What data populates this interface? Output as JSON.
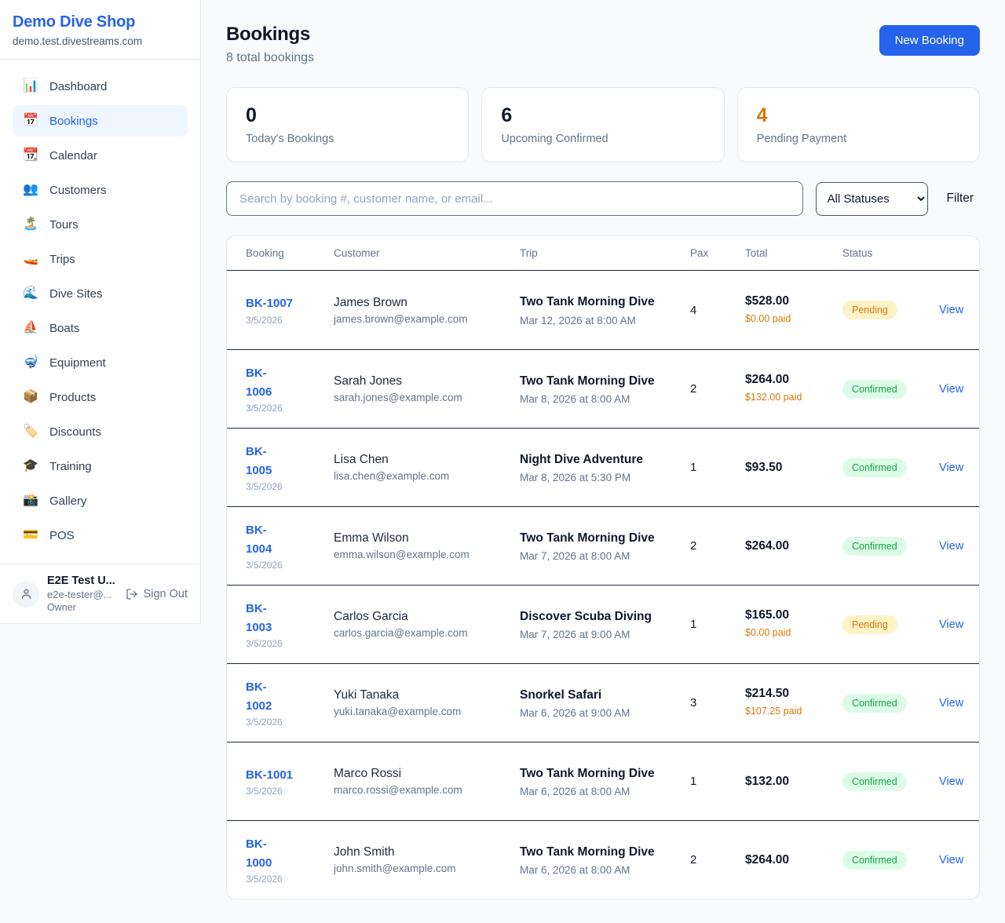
{
  "sidebar": {
    "brand": {
      "name": "Demo Dive Shop",
      "domain": "demo.test.divestreams.com"
    },
    "items": [
      {
        "label": "Dashboard",
        "icon": "bar-chart-icon",
        "glyph": "📊",
        "active": false
      },
      {
        "label": "Bookings",
        "icon": "calendar-icon",
        "glyph": "📅",
        "active": true
      },
      {
        "label": "Calendar",
        "icon": "tear-off-calendar-icon",
        "glyph": "📆",
        "active": false
      },
      {
        "label": "Customers",
        "icon": "people-icon",
        "glyph": "👥",
        "active": false
      },
      {
        "label": "Tours",
        "icon": "island-icon",
        "glyph": "🏝️",
        "active": false
      },
      {
        "label": "Trips",
        "icon": "speedboat-icon",
        "glyph": "🚤",
        "active": false
      },
      {
        "label": "Dive Sites",
        "icon": "wave-icon",
        "glyph": "🌊",
        "active": false
      },
      {
        "label": "Boats",
        "icon": "sailboat-icon",
        "glyph": "⛵",
        "active": false
      },
      {
        "label": "Equipment",
        "icon": "diving-mask-icon",
        "glyph": "🤿",
        "active": false
      },
      {
        "label": "Products",
        "icon": "package-icon",
        "glyph": "📦",
        "active": false
      },
      {
        "label": "Discounts",
        "icon": "tag-icon",
        "glyph": "🏷️",
        "active": false
      },
      {
        "label": "Training",
        "icon": "graduation-cap-icon",
        "glyph": "🎓",
        "active": false
      },
      {
        "label": "Gallery",
        "icon": "camera-icon",
        "glyph": "📸",
        "active": false
      },
      {
        "label": "POS",
        "icon": "credit-card-icon",
        "glyph": "💳",
        "active": false
      }
    ],
    "user": {
      "name": "E2E Test U...",
      "email": "e2e-tester@...",
      "role": "Owner",
      "sign_out": "Sign Out"
    }
  },
  "header": {
    "title": "Bookings",
    "subtitle": "8 total bookings",
    "new_booking": "New Booking"
  },
  "stats": [
    {
      "value": "0",
      "label": "Today's Bookings",
      "accent": false
    },
    {
      "value": "6",
      "label": "Upcoming Confirmed",
      "accent": false
    },
    {
      "value": "4",
      "label": "Pending Payment",
      "accent": true
    }
  ],
  "controls": {
    "search_placeholder": "Search by booking #, customer name, or email...",
    "status_filter_value": "All Statuses",
    "filter_label": "Filter"
  },
  "table": {
    "headers": [
      "Booking",
      "Customer",
      "Trip",
      "Pax",
      "Total",
      "Status"
    ],
    "view_label": "View",
    "rows": [
      {
        "id": "BK-1007",
        "date": "3/5/2026",
        "customer": "James Brown",
        "email": "james.brown@example.com",
        "trip": "Two Tank Morning Dive",
        "trip_datetime": "Mar 12, 2026 at 8:00 AM",
        "pax": "4",
        "total": "$528.00",
        "paid": "$0.00 paid",
        "status": "Pending"
      },
      {
        "id": "BK-\n1006",
        "date": "3/5/2026",
        "customer": "Sarah Jones",
        "email": "sarah.jones@example.com",
        "trip": "Two Tank Morning Dive",
        "trip_datetime": "Mar 8, 2026 at 8:00 AM",
        "pax": "2",
        "total": "$264.00",
        "paid": "$132.00 paid",
        "status": "Confirmed"
      },
      {
        "id": "BK-\n1005",
        "date": "3/5/2026",
        "customer": "Lisa Chen",
        "email": "lisa.chen@example.com",
        "trip": "Night Dive Adventure",
        "trip_datetime": "Mar 8, 2026 at 5:30 PM",
        "pax": "1",
        "total": "$93.50",
        "paid": "",
        "status": "Confirmed"
      },
      {
        "id": "BK-\n1004",
        "date": "3/5/2026",
        "customer": "Emma Wilson",
        "email": "emma.wilson@example.com",
        "trip": "Two Tank Morning Dive",
        "trip_datetime": "Mar 7, 2026 at 8:00 AM",
        "pax": "2",
        "total": "$264.00",
        "paid": "",
        "status": "Confirmed"
      },
      {
        "id": "BK-\n1003",
        "date": "3/5/2026",
        "customer": "Carlos Garcia",
        "email": "carlos.garcia@example.com",
        "trip": "Discover Scuba Diving",
        "trip_datetime": "Mar 7, 2026 at 9:00 AM",
        "pax": "1",
        "total": "$165.00",
        "paid": "$0.00 paid",
        "status": "Pending"
      },
      {
        "id": "BK-\n1002",
        "date": "3/5/2026",
        "customer": "Yuki Tanaka",
        "email": "yuki.tanaka@example.com",
        "trip": "Snorkel Safari",
        "trip_datetime": "Mar 6, 2026 at 9:00 AM",
        "pax": "3",
        "total": "$214.50",
        "paid": "$107.25 paid",
        "status": "Confirmed"
      },
      {
        "id": "BK-1001",
        "date": "3/5/2026",
        "customer": "Marco Rossi",
        "email": "marco.rossi@example.com",
        "trip": "Two Tank Morning Dive",
        "trip_datetime": "Mar 6, 2026 at 8:00 AM",
        "pax": "1",
        "total": "$132.00",
        "paid": "",
        "status": "Confirmed"
      },
      {
        "id": "BK-\n1000",
        "date": "3/5/2026",
        "customer": "John Smith",
        "email": "john.smith@example.com",
        "trip": "Two Tank Morning Dive",
        "trip_datetime": "Mar 6, 2026 at 8:00 AM",
        "pax": "2",
        "total": "$264.00",
        "paid": "",
        "status": "Confirmed"
      }
    ]
  },
  "colors": {
    "accent_blue": "#2563eb",
    "pending_text": "#d97706",
    "pending_bg": "#fef3c7",
    "confirmed_text": "#16a34a",
    "confirmed_bg": "#dcfce7",
    "page_bg": "#f8fafc",
    "row_divider": "#1e293b"
  }
}
